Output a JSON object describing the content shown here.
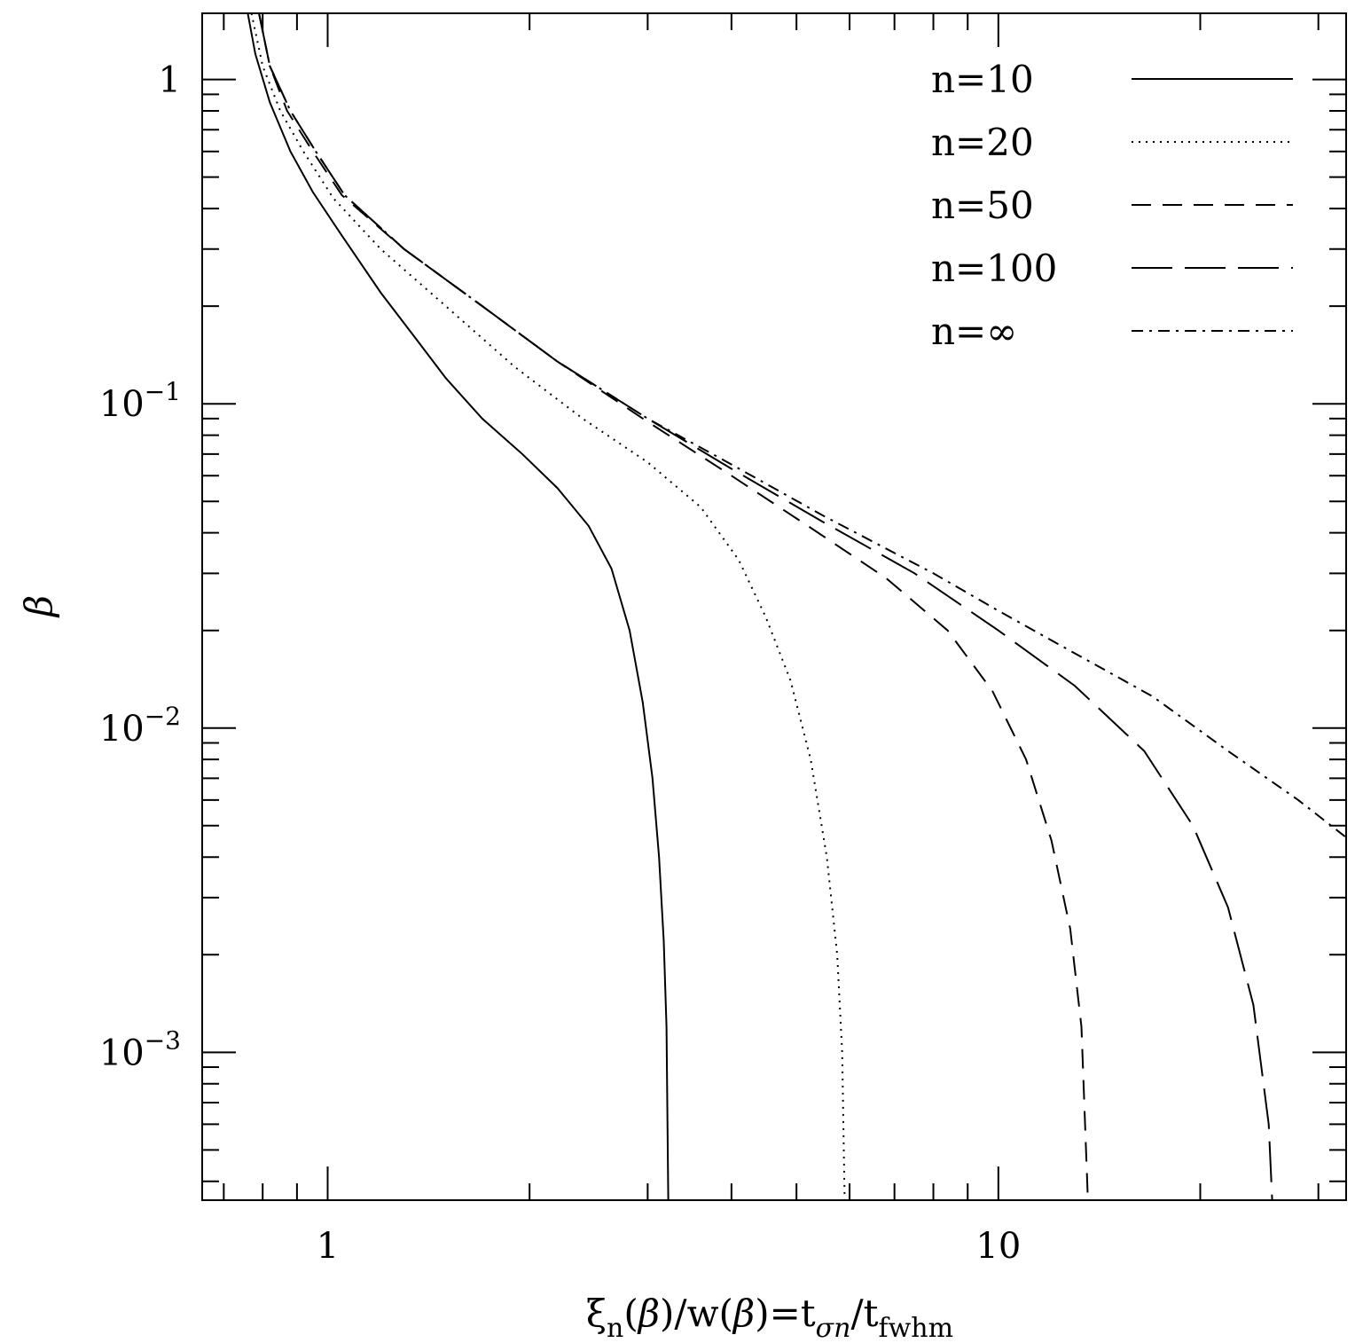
{
  "chart_data": {
    "type": "line",
    "x_scale": "log",
    "y_scale": "log",
    "xlim": [
      0.65,
      33
    ],
    "ylim": [
      0.00035,
      1.6
    ],
    "grid": false,
    "legend_position": "top-right",
    "xlabel": {
      "xi": "ξ",
      "xi_sub": "n",
      "mid1": "(",
      "beta1": "β",
      "mid2": ")/w(",
      "beta2": "β",
      "mid3": ")=t",
      "t1_sub": "σn",
      "mid4": "/t",
      "t2_sub": "fwhm"
    },
    "ylabel": "β",
    "x_major_ticks": [
      {
        "value": 1,
        "label": "1"
      },
      {
        "value": 10,
        "label": "10"
      }
    ],
    "y_major_ticks": [
      {
        "value": 1,
        "base": "1",
        "exp": ""
      },
      {
        "value": 0.1,
        "base": "10",
        "exp": "−1"
      },
      {
        "value": 0.01,
        "base": "10",
        "exp": "−2"
      },
      {
        "value": 0.001,
        "base": "10",
        "exp": "−3"
      }
    ],
    "series": [
      {
        "name": "n=10",
        "dash": "solid",
        "points": [
          [
            0.76,
            1.6
          ],
          [
            0.78,
            1.2
          ],
          [
            0.82,
            0.85
          ],
          [
            0.88,
            0.6
          ],
          [
            0.95,
            0.45
          ],
          [
            1.05,
            0.33
          ],
          [
            1.2,
            0.22
          ],
          [
            1.35,
            0.16
          ],
          [
            1.5,
            0.12
          ],
          [
            1.7,
            0.09
          ],
          [
            1.95,
            0.07
          ],
          [
            2.2,
            0.055
          ],
          [
            2.45,
            0.042
          ],
          [
            2.65,
            0.031
          ],
          [
            2.82,
            0.02
          ],
          [
            2.95,
            0.012
          ],
          [
            3.05,
            0.007
          ],
          [
            3.12,
            0.004
          ],
          [
            3.17,
            0.0022
          ],
          [
            3.2,
            0.0012
          ],
          [
            3.22,
            0.00035
          ]
        ]
      },
      {
        "name": "n=20",
        "dash": "dotted",
        "points": [
          [
            0.77,
            1.6
          ],
          [
            0.8,
            1.1
          ],
          [
            0.85,
            0.8
          ],
          [
            0.92,
            0.6
          ],
          [
            1.02,
            0.43
          ],
          [
            1.2,
            0.3
          ],
          [
            1.5,
            0.2
          ],
          [
            1.9,
            0.13
          ],
          [
            2.4,
            0.09
          ],
          [
            3.0,
            0.066
          ],
          [
            3.6,
            0.048
          ],
          [
            4.1,
            0.033
          ],
          [
            4.5,
            0.022
          ],
          [
            4.9,
            0.014
          ],
          [
            5.25,
            0.008
          ],
          [
            5.55,
            0.004
          ],
          [
            5.75,
            0.002
          ],
          [
            5.85,
            0.001
          ],
          [
            5.9,
            0.00035
          ]
        ]
      },
      {
        "name": "n=50",
        "dash": "dashed",
        "points": [
          [
            0.79,
            1.6
          ],
          [
            0.82,
            1.1
          ],
          [
            0.87,
            0.8
          ],
          [
            0.95,
            0.6
          ],
          [
            1.05,
            0.44
          ],
          [
            1.3,
            0.3
          ],
          [
            1.7,
            0.2
          ],
          [
            2.2,
            0.135
          ],
          [
            3.0,
            0.088
          ],
          [
            4.0,
            0.06
          ],
          [
            5.2,
            0.042
          ],
          [
            6.8,
            0.029
          ],
          [
            8.4,
            0.02
          ],
          [
            9.8,
            0.013
          ],
          [
            11.0,
            0.008
          ],
          [
            12.0,
            0.0045
          ],
          [
            12.8,
            0.0024
          ],
          [
            13.3,
            0.0012
          ],
          [
            13.6,
            0.00035
          ]
        ]
      },
      {
        "name": "n=100",
        "dash": "longdash",
        "points": [
          [
            0.79,
            1.6
          ],
          [
            0.82,
            1.1
          ],
          [
            0.88,
            0.8
          ],
          [
            0.96,
            0.6
          ],
          [
            1.06,
            0.44
          ],
          [
            1.3,
            0.3
          ],
          [
            1.7,
            0.2
          ],
          [
            2.2,
            0.135
          ],
          [
            3.0,
            0.09
          ],
          [
            4.0,
            0.063
          ],
          [
            5.5,
            0.043
          ],
          [
            7.5,
            0.03
          ],
          [
            10.0,
            0.02
          ],
          [
            13.0,
            0.0135
          ],
          [
            16.5,
            0.0085
          ],
          [
            19.5,
            0.005
          ],
          [
            22.0,
            0.0028
          ],
          [
            24.0,
            0.0014
          ],
          [
            25.3,
            0.0006
          ],
          [
            25.6,
            0.00035
          ]
        ]
      },
      {
        "name": "n=∞",
        "dash": "dashdot",
        "points": [
          [
            0.79,
            1.6
          ],
          [
            0.82,
            1.1
          ],
          [
            0.88,
            0.8
          ],
          [
            0.96,
            0.6
          ],
          [
            1.06,
            0.44
          ],
          [
            1.3,
            0.3
          ],
          [
            1.7,
            0.2
          ],
          [
            2.2,
            0.135
          ],
          [
            3.0,
            0.09
          ],
          [
            4.0,
            0.065
          ],
          [
            5.5,
            0.045
          ],
          [
            8.0,
            0.03
          ],
          [
            10.0,
            0.023
          ],
          [
            13.0,
            0.017
          ],
          [
            17.0,
            0.0125
          ],
          [
            22.0,
            0.0085
          ],
          [
            28.0,
            0.006
          ],
          [
            33.0,
            0.0046
          ]
        ]
      }
    ]
  }
}
